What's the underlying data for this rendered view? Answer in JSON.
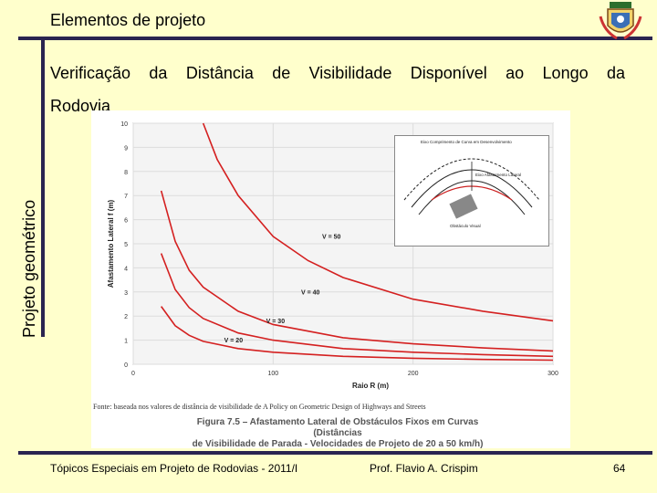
{
  "header": {
    "title": "Elementos de projeto"
  },
  "side_label": "Projeto geométrico",
  "subtitle_line1": "Verificação da Distância de Visibilidade Disponível ao Longo da",
  "subtitle_line2": "Rodovia",
  "figure": {
    "source": "Fonte: baseada nos valores de distância de visibilidade de A Policy on Geometric Design of Highways and Streets",
    "caption_line1": "Figura 7.5 – Afastamento Lateral de Obstáculos Fixos em Curvas (Distâncias",
    "caption_line2": "de Visibilidade de Parada - Velocidades de Projeto de 20 a 50 km/h)",
    "inset_labels": [
      "Eixo Comprimento de Curva em Desenvolvimento",
      "Eixo Afastamento Lateral",
      "Obstáculo Visual"
    ]
  },
  "chart_data": {
    "type": "line",
    "title": "",
    "xlabel": "Raio R (m)",
    "ylabel": "Afastamento Lateral f (m)",
    "xlim": [
      0,
      300
    ],
    "ylim": [
      0,
      10
    ],
    "x_ticks": [
      "0",
      "100",
      "200",
      "300"
    ],
    "y_ticks": [
      "0",
      "1",
      "2",
      "3",
      "4",
      "5",
      "6",
      "7",
      "8",
      "9",
      "10"
    ],
    "series": [
      {
        "name": "V = 50",
        "x": [
          50,
          60,
          75,
          100,
          125,
          150,
          200,
          250,
          300
        ],
        "y": [
          10.0,
          8.5,
          7.0,
          5.3,
          4.3,
          3.6,
          2.7,
          2.2,
          1.8
        ]
      },
      {
        "name": "V = 40",
        "x": [
          20,
          30,
          40,
          50,
          75,
          100,
          150,
          200,
          250,
          300
        ],
        "y": [
          7.2,
          5.1,
          3.9,
          3.2,
          2.2,
          1.65,
          1.1,
          0.85,
          0.68,
          0.55
        ]
      },
      {
        "name": "V = 30",
        "x": [
          20,
          30,
          40,
          50,
          75,
          100,
          150,
          200,
          250,
          300
        ],
        "y": [
          4.6,
          3.1,
          2.35,
          1.9,
          1.3,
          1.0,
          0.65,
          0.5,
          0.4,
          0.33
        ]
      },
      {
        "name": "V = 20",
        "x": [
          20,
          30,
          40,
          50,
          75,
          100,
          150,
          200,
          250,
          300
        ],
        "y": [
          2.4,
          1.6,
          1.2,
          0.95,
          0.65,
          0.5,
          0.33,
          0.25,
          0.2,
          0.17
        ]
      }
    ],
    "annotations": [
      "V = 50",
      "V = 40",
      "V = 30",
      "V = 20"
    ],
    "grid": true
  },
  "footer": {
    "left": "Tópicos Especiais em Projeto de Rodovias - 2011/I",
    "middle": "Prof. Flavio  A. Crispim",
    "page": "64"
  },
  "colors": {
    "background": "#ffffcc",
    "rule": "#2a2450",
    "curve": "#d42020",
    "grid": "#e8e8e8"
  }
}
